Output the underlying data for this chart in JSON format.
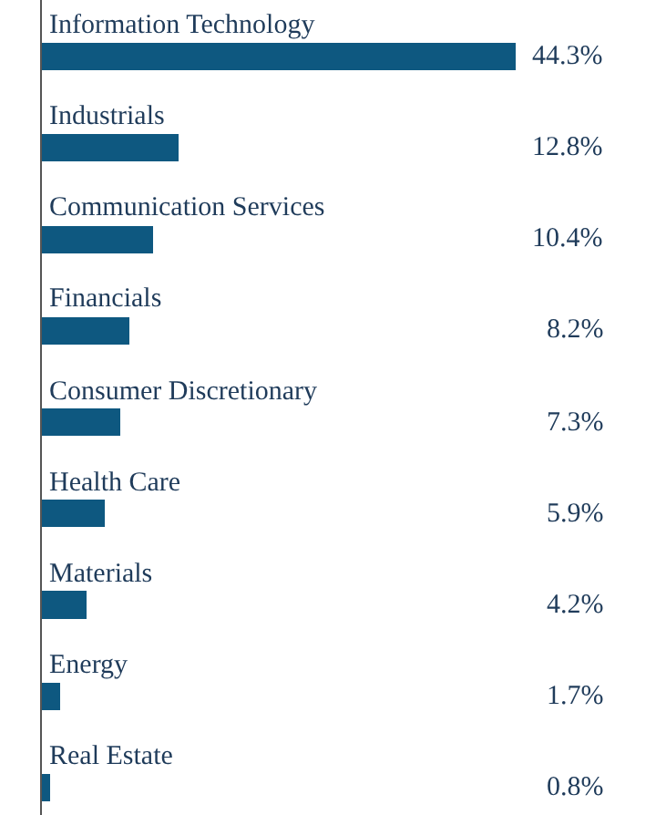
{
  "chart_data": {
    "type": "bar",
    "orientation": "horizontal",
    "categories": [
      "Information Technology",
      "Industrials",
      "Communication Services",
      "Financials",
      "Consumer Discretionary",
      "Health Care",
      "Materials",
      "Energy",
      "Real Estate"
    ],
    "values": [
      44.3,
      12.8,
      10.4,
      8.2,
      7.3,
      5.9,
      4.2,
      1.7,
      0.8
    ],
    "value_labels": [
      "44.3%",
      "12.8%",
      "10.4%",
      "8.2%",
      "7.3%",
      "5.9%",
      "4.2%",
      "1.7%",
      "0.8%"
    ],
    "color": "#0e5880"
  }
}
